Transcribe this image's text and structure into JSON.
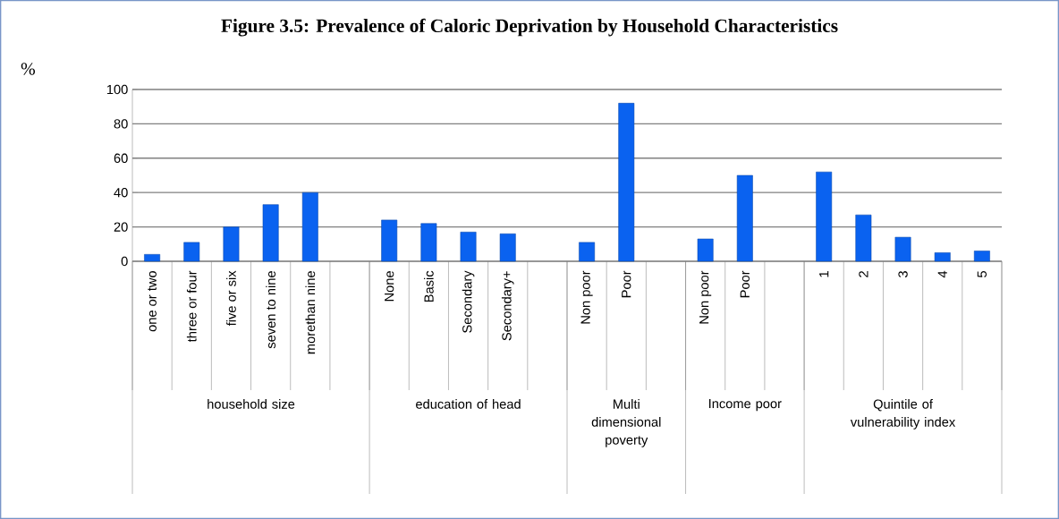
{
  "chart_data": {
    "type": "bar",
    "title": "Figure 3.5: Prevalence of Caloric Deprivation by Household Characteristics",
    "ylabel": "%",
    "categories": [
      "one or two",
      "three or four",
      "five or six",
      "seven to nine",
      "morethan nine",
      null,
      "None",
      "Basic",
      "Secondary",
      "Secondary+",
      null,
      "Non poor",
      "Poor",
      null,
      "Non poor",
      "Poor",
      null,
      "1",
      "2",
      "3",
      "4",
      "5"
    ],
    "values": [
      4,
      11,
      20,
      33,
      40,
      null,
      24,
      22,
      17,
      16,
      null,
      11,
      92,
      null,
      13,
      50,
      null,
      52,
      27,
      14,
      5,
      6
    ],
    "color": "#0a62f0",
    "ylim": [
      0,
      100
    ],
    "yticks": [
      0,
      20,
      40,
      60,
      80,
      100
    ],
    "grid": "y",
    "annotations": [
      "household size",
      "education of head",
      "Multi dimensional poverty",
      "Income poor",
      "Quintile of vulnerability index"
    ]
  }
}
